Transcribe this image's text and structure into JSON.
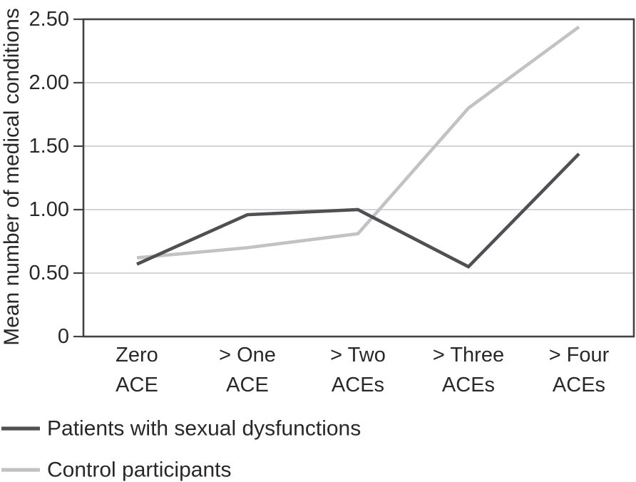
{
  "chart_data": {
    "type": "line",
    "title": "",
    "xlabel": "",
    "ylabel": "Mean number of medical conditions",
    "ylim": [
      0,
      2.5
    ],
    "grid": true,
    "legend_position": "bottom-left",
    "yticks": [
      {
        "value": 0,
        "label": "0"
      },
      {
        "value": 0.5,
        "label": "0.50"
      },
      {
        "value": 1.0,
        "label": "1.00"
      },
      {
        "value": 1.5,
        "label": "1.50"
      },
      {
        "value": 2.0,
        "label": "2.00"
      },
      {
        "value": 2.5,
        "label": "2.50"
      }
    ],
    "categories": [
      "Zero ACE",
      "> One ACE",
      "> Two ACEs",
      "> Three ACEs",
      "> Four ACEs"
    ],
    "category_label_lines": [
      [
        "Zero",
        "ACE"
      ],
      [
        "> One",
        "ACE"
      ],
      [
        "> Two",
        "ACEs"
      ],
      [
        "> Three",
        "ACEs"
      ],
      [
        "> Four",
        "ACEs"
      ]
    ],
    "series": [
      {
        "name": "Patients with sexual dysfunctions",
        "color": "#4f4f54",
        "values": [
          0.57,
          0.96,
          1.0,
          0.55,
          1.44
        ]
      },
      {
        "name": "Control participants",
        "color": "#c2c2c2",
        "values": [
          0.62,
          0.7,
          0.81,
          1.8,
          2.44
        ]
      }
    ],
    "colors": {
      "grid": "#c7c7c7",
      "axis": "#414146",
      "text": "#28282a"
    }
  }
}
